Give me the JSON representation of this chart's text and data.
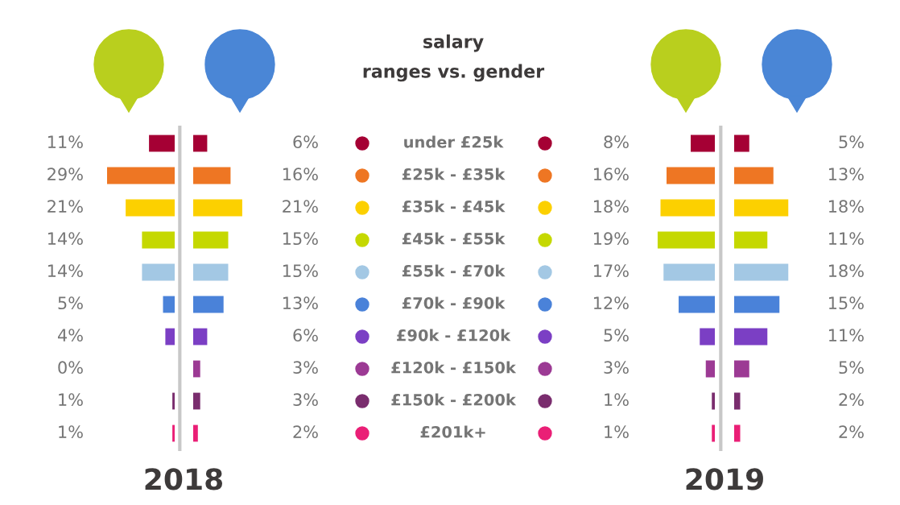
{
  "chart_data": [
    {
      "type": "bar",
      "orientation": "horizontal",
      "title": "salary\nranges vs. gender",
      "xlabel": "2018",
      "data_labels": true,
      "xlim": [
        29,
        0
      ],
      "categories": [
        "under £25k",
        "£25k - £35k",
        "£35k - £45k",
        "£45k - £55k",
        "£55k - £70k",
        "£70k - £90k",
        "£90k - £120k",
        "£120k - £150k",
        "£150k - £200k",
        "£201k+"
      ],
      "series": [
        {
          "colors": [
            "#a50034",
            "#ee7623",
            "#fcd000",
            "#c5d800",
            "#a3c8e4",
            "#4a82d9",
            "#7b3fc4",
            "#9c3a94",
            "#7a2d6e",
            "#ea1f76"
          ],
          "values": [
            11,
            29,
            21,
            14,
            14,
            5,
            4,
            0,
            1,
            1
          ],
          "value_labels": [
            "11%",
            "29%",
            "21%",
            "14%",
            "14%",
            "5%",
            "4%",
            "0%",
            "1%",
            "1%"
          ]
        }
      ]
    },
    {
      "type": "bar",
      "orientation": "horizontal",
      "data_labels": true,
      "xlim": [
        0,
        21
      ],
      "categories": [
        null,
        null,
        null,
        null,
        null,
        null,
        null,
        null,
        null,
        null
      ],
      "series": [
        {
          "colors": [
            "#a50034",
            "#ee7623",
            "#fcd000",
            "#c5d800",
            "#a3c8e4",
            "#4a82d9",
            "#7b3fc4",
            "#9c3a94",
            "#7a2d6e",
            "#ea1f76"
          ],
          "values": [
            6,
            16,
            21,
            15,
            15,
            13,
            6,
            3,
            3,
            2
          ],
          "value_labels": [
            "6%",
            "16%",
            "21%",
            "15%",
            "15%",
            "13%",
            "6%",
            "3%",
            "3%",
            "2%"
          ]
        }
      ]
    },
    {
      "type": "bar",
      "orientation": "horizontal",
      "xlabel": "2019",
      "data_labels": true,
      "xlim": [
        19,
        0
      ],
      "categories": [
        null,
        null,
        null,
        null,
        null,
        null,
        null,
        null,
        null,
        null
      ],
      "series": [
        {
          "colors": [
            "#a50034",
            "#ee7623",
            "#fcd000",
            "#c5d800",
            "#a3c8e4",
            "#4a82d9",
            "#7b3fc4",
            "#9c3a94",
            "#7a2d6e",
            "#ea1f76"
          ],
          "values": [
            8,
            16,
            18,
            19,
            17,
            12,
            5,
            3,
            1,
            1
          ],
          "value_labels": [
            "8%",
            "16%",
            "18%",
            "19%",
            "17%",
            "12%",
            "5%",
            "3%",
            "1%",
            "1%"
          ]
        }
      ]
    },
    {
      "type": "bar",
      "orientation": "horizontal",
      "data_labels": true,
      "xlim": [
        0,
        18
      ],
      "categories": [
        null,
        null,
        null,
        null,
        null,
        null,
        null,
        null,
        null,
        null
      ],
      "series": [
        {
          "colors": [
            "#a50034",
            "#ee7623",
            "#fcd000",
            "#c5d800",
            "#a3c8e4",
            "#4a82d9",
            "#7b3fc4",
            "#9c3a94",
            "#7a2d6e",
            "#ea1f76"
          ],
          "values": [
            5,
            13,
            18,
            11,
            18,
            15,
            11,
            5,
            2,
            2
          ],
          "value_labels": [
            "5%",
            "13%",
            "18%",
            "11%",
            "18%",
            "15%",
            "11%",
            "5%",
            "2%",
            "2%"
          ]
        }
      ]
    }
  ]
}
